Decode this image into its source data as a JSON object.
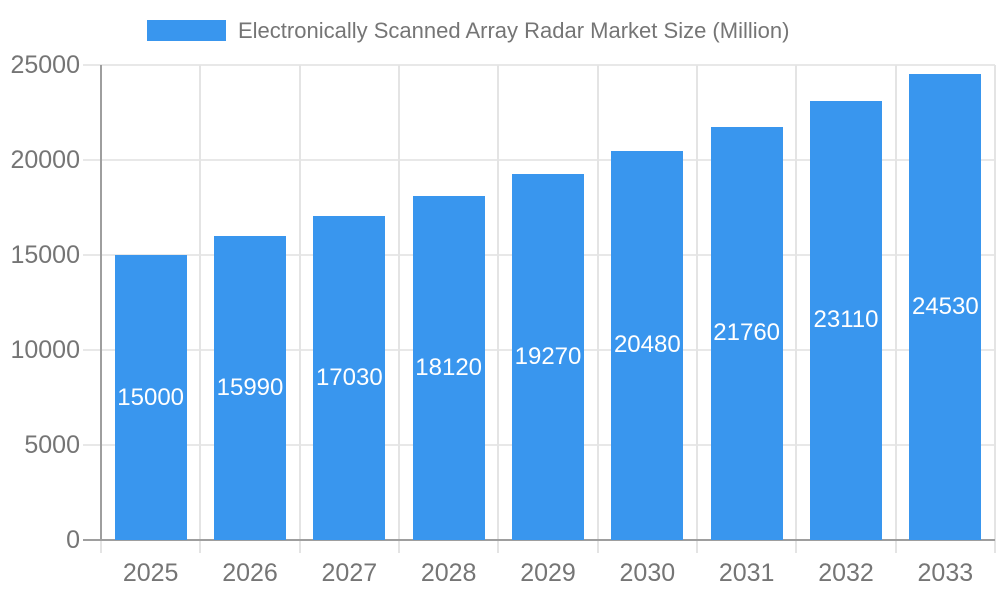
{
  "legend": {
    "label": "Electronically Scanned Array Radar Market Size (Million)",
    "swatch_color": "#3996EE"
  },
  "chart_data": {
    "type": "bar",
    "title": "Electronically Scanned Array Radar Market Size (Million)",
    "categories": [
      "2025",
      "2026",
      "2027",
      "2028",
      "2029",
      "2030",
      "2031",
      "2032",
      "2033"
    ],
    "values": [
      15000,
      15990,
      17030,
      18120,
      19270,
      20480,
      21760,
      23110,
      24530
    ],
    "series_name": "Electronically Scanned Array Radar Market Size (Million)",
    "xlabel": "",
    "ylabel": "",
    "ylim": [
      0,
      25000
    ],
    "yticks": [
      0,
      5000,
      10000,
      15000,
      20000,
      25000
    ],
    "grid": true,
    "legend_position": "top",
    "colors": {
      "bar": "#3996EE",
      "value_label": "#ffffff",
      "axis": "#9E9E9E",
      "grid_h": "#E8E8E8",
      "grid_v": "#E4E4E4",
      "tick_label": "#757575",
      "background": "#ffffff"
    }
  }
}
